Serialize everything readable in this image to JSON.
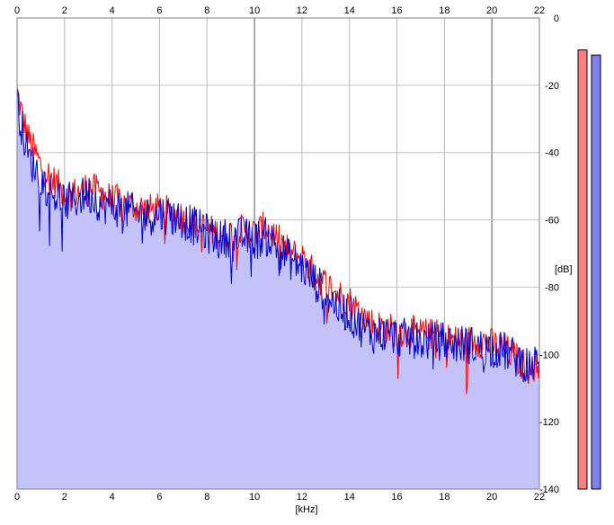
{
  "chart_data": {
    "type": "area",
    "xlabel": "[kHz]",
    "ylabel": "[dB]",
    "xlim": [
      0,
      22
    ],
    "ylim": [
      -140,
      0
    ],
    "x_ticks": [
      "0",
      "2",
      "4",
      "6",
      "8",
      "10",
      "12",
      "14",
      "16",
      "18",
      "20",
      "22"
    ],
    "y_ticks": [
      "0",
      "-20",
      "-40",
      "-60",
      "-80",
      "-100",
      "-120",
      "-140"
    ],
    "grid": true,
    "series": [
      {
        "color": "#ff0000",
        "x": [
          0,
          0.25,
          0.5,
          0.75,
          1,
          1.5,
          2,
          2.5,
          3,
          3.5,
          4,
          4.5,
          5,
          5.5,
          6,
          6.5,
          7,
          7.5,
          8,
          8.5,
          9,
          9.5,
          10,
          10.5,
          11,
          11.5,
          12,
          12.5,
          13,
          13.5,
          14,
          14.5,
          15,
          15.5,
          16,
          16.5,
          17,
          17.5,
          18,
          18.5,
          19,
          19.5,
          20,
          20.5,
          21,
          21.5,
          22
        ],
        "y": [
          -22,
          -30,
          -36,
          -40,
          -44,
          -48,
          -52,
          -52,
          -50,
          -52,
          -54,
          -55,
          -56,
          -57,
          -57,
          -58,
          -59,
          -61,
          -63,
          -64,
          -64,
          -63,
          -64,
          -62,
          -66,
          -70,
          -71,
          -76,
          -79,
          -82,
          -84,
          -88,
          -91,
          -92,
          -93,
          -93,
          -94,
          -94,
          -95,
          -96,
          -96,
          -96,
          -97,
          -98,
          -101,
          -104,
          -103
        ]
      },
      {
        "color": "#0000d0",
        "x": [
          0,
          0.25,
          0.5,
          0.75,
          1,
          1.5,
          2,
          2.5,
          3,
          3.5,
          4,
          4.5,
          5,
          5.5,
          6,
          6.5,
          7,
          7.5,
          8,
          8.5,
          9,
          9.5,
          10,
          10.5,
          11,
          11.5,
          12,
          12.5,
          13,
          13.5,
          14,
          14.5,
          15,
          15.5,
          16,
          16.5,
          17,
          17.5,
          18,
          18.5,
          19,
          19.5,
          20,
          20.5,
          21,
          21.5,
          22
        ],
        "y": [
          -25,
          -34,
          -42,
          -44,
          -48,
          -52,
          -55,
          -54,
          -52,
          -55,
          -56,
          -57,
          -58,
          -59,
          -58,
          -59,
          -60,
          -62,
          -64,
          -66,
          -65,
          -65,
          -66,
          -65,
          -68,
          -72,
          -74,
          -78,
          -82,
          -86,
          -88,
          -92,
          -94,
          -94,
          -95,
          -95,
          -96,
          -96,
          -96,
          -97,
          -97,
          -98,
          -98,
          -99,
          -101,
          -103,
          -103
        ]
      }
    ],
    "fill_color": "#c3c3fa",
    "level_meters": [
      {
        "color": "#ff8080",
        "level_db": -9.5
      },
      {
        "color": "#8080f0",
        "level_db": -11
      }
    ]
  }
}
